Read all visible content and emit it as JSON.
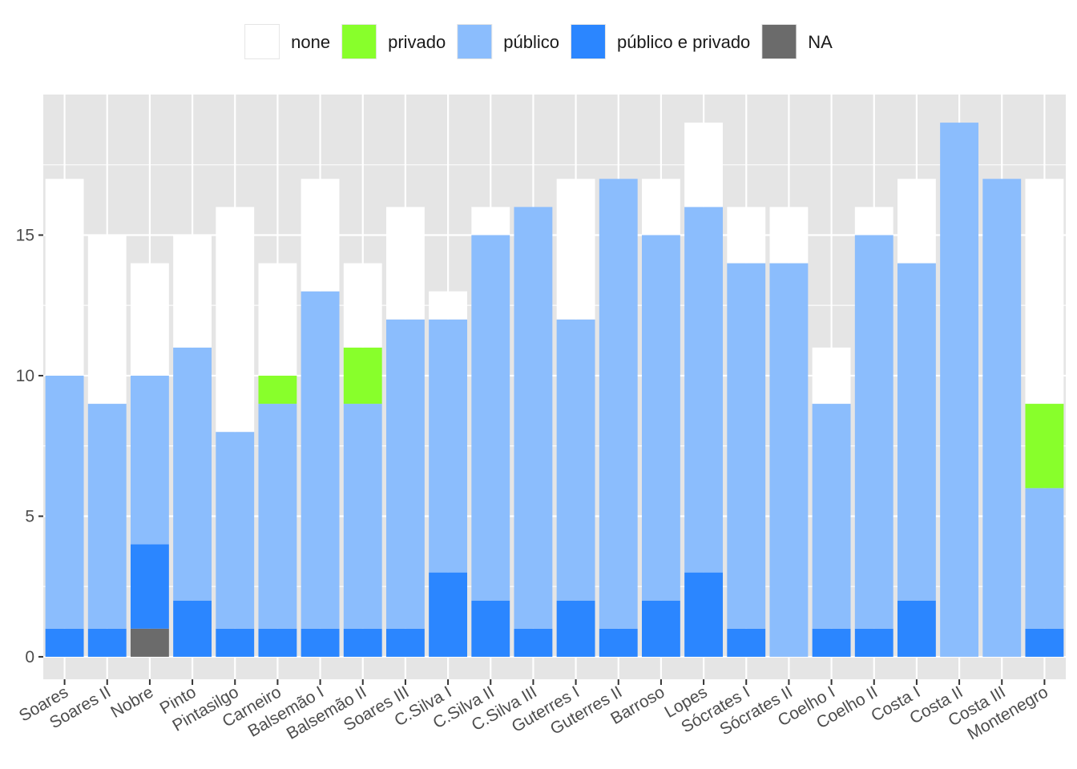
{
  "chart_data": {
    "type": "bar",
    "stacked": true,
    "title": "",
    "xlabel": "",
    "ylabel": "",
    "ylim": [
      -0.8,
      20
    ],
    "yticks": [
      0,
      5,
      10,
      15
    ],
    "grid": true,
    "legend_position": "top",
    "categories": [
      "Soares",
      "Soares II",
      "Nobre",
      "Pinto",
      "Pintasilgo",
      "Carneiro",
      "Balsemão I",
      "Balsemão II",
      "Soares III",
      "C.Silva I",
      "C.Silva II",
      "C.Silva III",
      "Guterres I",
      "Guterres II",
      "Barroso",
      "Lopes",
      "Sócrates I",
      "Sócrates II",
      "Coelho I",
      "Coelho II",
      "Costa I",
      "Costa II",
      "Costa III",
      "Montenegro"
    ],
    "series": [
      {
        "name": "NA",
        "color": "#6b6b6b",
        "values": [
          0,
          0,
          1,
          0,
          0,
          0,
          0,
          0,
          0,
          0,
          0,
          0,
          0,
          0,
          0,
          0,
          0,
          0,
          0,
          0,
          0,
          0,
          0,
          0
        ]
      },
      {
        "name": "público e privado",
        "color": "#2b86ff",
        "values": [
          1,
          1,
          3,
          2,
          1,
          1,
          1,
          1,
          1,
          3,
          2,
          1,
          2,
          1,
          2,
          3,
          1,
          0,
          1,
          1,
          2,
          0,
          0,
          1
        ]
      },
      {
        "name": "público",
        "color": "#8bbdfd",
        "values": [
          9,
          8,
          6,
          9,
          7,
          8,
          12,
          8,
          11,
          9,
          13,
          15,
          10,
          16,
          13,
          13,
          13,
          14,
          8,
          14,
          12,
          19,
          17,
          5
        ]
      },
      {
        "name": "privado",
        "color": "#88ff2b",
        "values": [
          0,
          0,
          0,
          0,
          0,
          1,
          0,
          2,
          0,
          0,
          0,
          0,
          0,
          0,
          0,
          0,
          0,
          0,
          0,
          0,
          0,
          0,
          0,
          3
        ]
      },
      {
        "name": "none",
        "color": "#ffffff",
        "values": [
          7,
          6,
          4,
          4,
          8,
          4,
          4,
          3,
          4,
          1,
          1,
          0,
          5,
          0,
          2,
          3,
          2,
          2,
          2,
          1,
          3,
          0,
          0,
          8
        ]
      }
    ],
    "legend_order": [
      "none",
      "privado",
      "público",
      "público e privado",
      "NA"
    ]
  },
  "colors": {
    "panel_background": "#e5e5e5",
    "grid_line": "#ffffff",
    "axis_tick": "#333333"
  }
}
